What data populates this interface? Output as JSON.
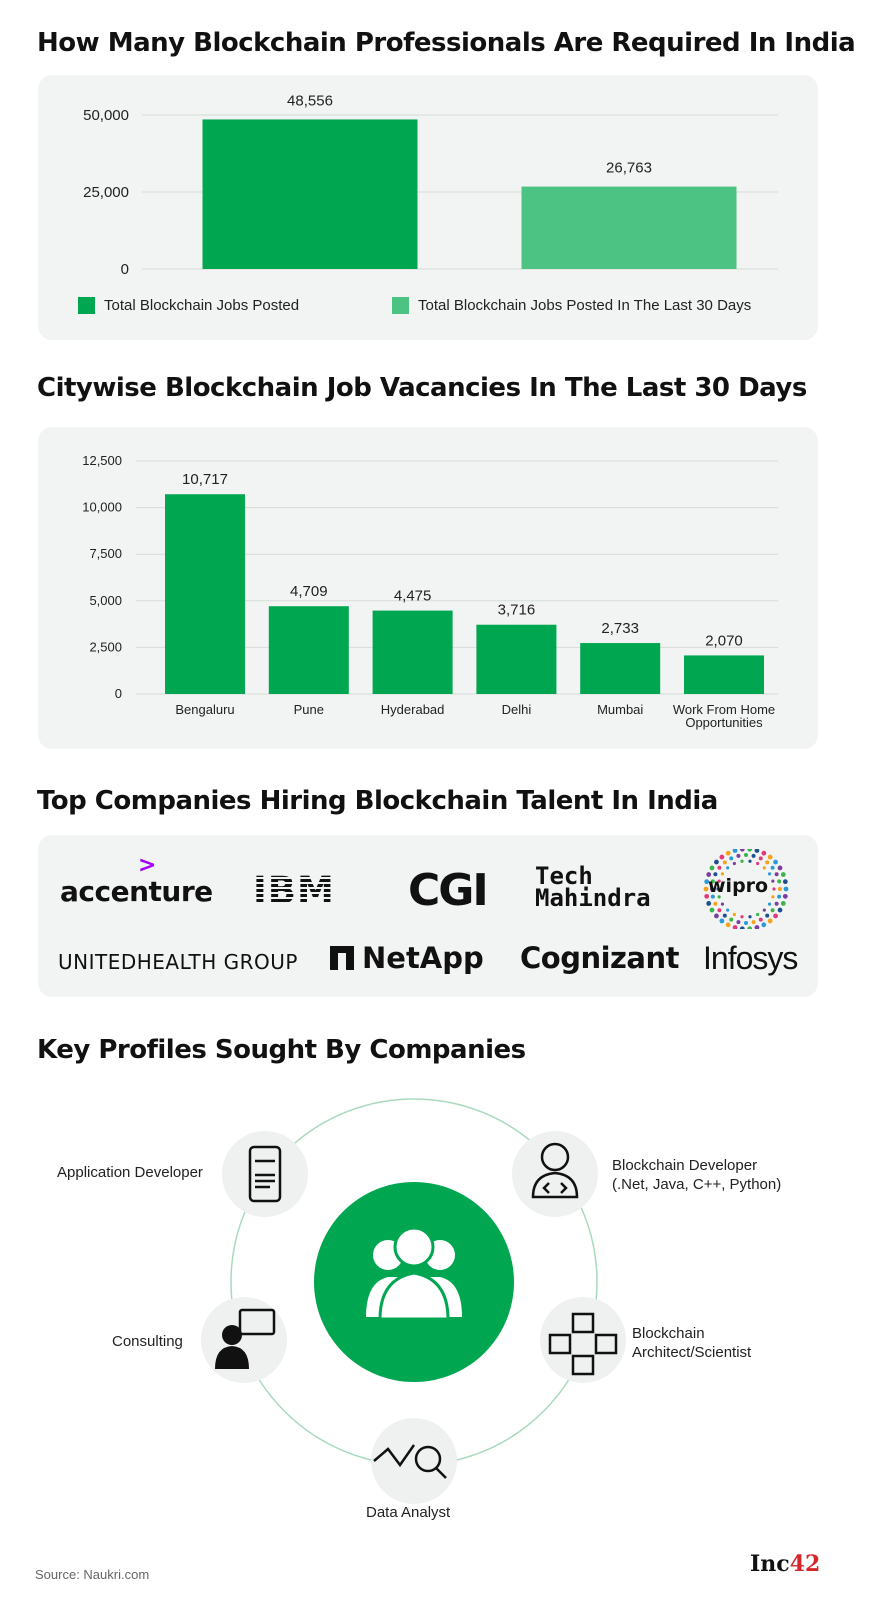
{
  "charts": {
    "professionals": {
      "title": "How Many Blockchain Professionals Are Required In India"
    },
    "citywise": {
      "title": "Citywise Blockchain Job Vacancies In The Last 30 Days"
    }
  },
  "chart_data": [
    {
      "type": "bar",
      "title": "How Many Blockchain Professionals Are Required In India",
      "categories": [
        "Total Blockchain Jobs Posted",
        "Total Blockchain Jobs Posted In The Last 30 Days"
      ],
      "values": [
        48556,
        26763
      ],
      "value_labels": [
        "48,556",
        "26,763"
      ],
      "yticks": [
        0,
        25000,
        50000
      ],
      "ytick_labels": [
        "0",
        "25,000",
        "50,000"
      ],
      "ylim": [
        0,
        50000
      ],
      "colors": [
        "#00a650",
        "#4cc383"
      ],
      "legend": [
        "Total Blockchain Jobs Posted",
        "Total Blockchain Jobs Posted In The Last 30 Days"
      ],
      "legend_position": "bottom",
      "grid": true
    },
    {
      "type": "bar",
      "title": "Citywise Blockchain Job Vacancies In The Last 30 Days",
      "categories": [
        "Bengaluru",
        "Pune",
        "Hyderabad",
        "Delhi",
        "Mumbai",
        "Work From Home Opportunities"
      ],
      "category_lines": [
        [
          "Bengaluru"
        ],
        [
          "Pune"
        ],
        [
          "Hyderabad"
        ],
        [
          "Delhi"
        ],
        [
          "Mumbai"
        ],
        [
          "Work From Home",
          "Opportunities"
        ]
      ],
      "values": [
        10717,
        4709,
        4475,
        3716,
        2733,
        2070
      ],
      "value_labels": [
        "10,717",
        "4,709",
        "4,475",
        "3,716",
        "2,733",
        "2,070"
      ],
      "yticks": [
        0,
        2500,
        5000,
        7500,
        10000,
        12500
      ],
      "ytick_labels": [
        "0",
        "2,500",
        "5,000",
        "7,500",
        "10,000",
        "12,500"
      ],
      "ylim": [
        0,
        12500
      ],
      "color": "#00a650",
      "grid": true
    }
  ],
  "companies": {
    "title": "Top Companies Hiring Blockchain Talent In India",
    "logos": {
      "accenture": "accenture",
      "ibm": "IBM",
      "cgi": "CGI",
      "tech_mahindra_top": "Tech",
      "tech_mahindra_bottom": "Mahindra",
      "wipro": "wipro",
      "unitedhealth": "UNITEDHEALTH GROUP",
      "netapp": "NetApp",
      "cognizant": "Cognizant",
      "infosys": "Infosys"
    }
  },
  "profiles": {
    "title": "Key Profiles Sought By Companies",
    "application_developer": "Application Developer",
    "blockchain_developer_line1": "Blockchain Developer",
    "blockchain_developer_line2": "(.Net, Java, C++, Python)",
    "consulting": "Consulting",
    "architect_line1": "Blockchain",
    "architect_line2": "Architect/Scientist",
    "data_analyst": "Data Analyst",
    "icons": [
      "mobile-app-icon",
      "developer-icon",
      "team-icon",
      "consulting-icon",
      "blockchain-cubes-icon",
      "data-analysis-icon"
    ],
    "accent_color": "#00a650"
  },
  "footer": {
    "source": "Source: Naukri.com",
    "brand_text": "Inc",
    "brand_num": "42"
  }
}
